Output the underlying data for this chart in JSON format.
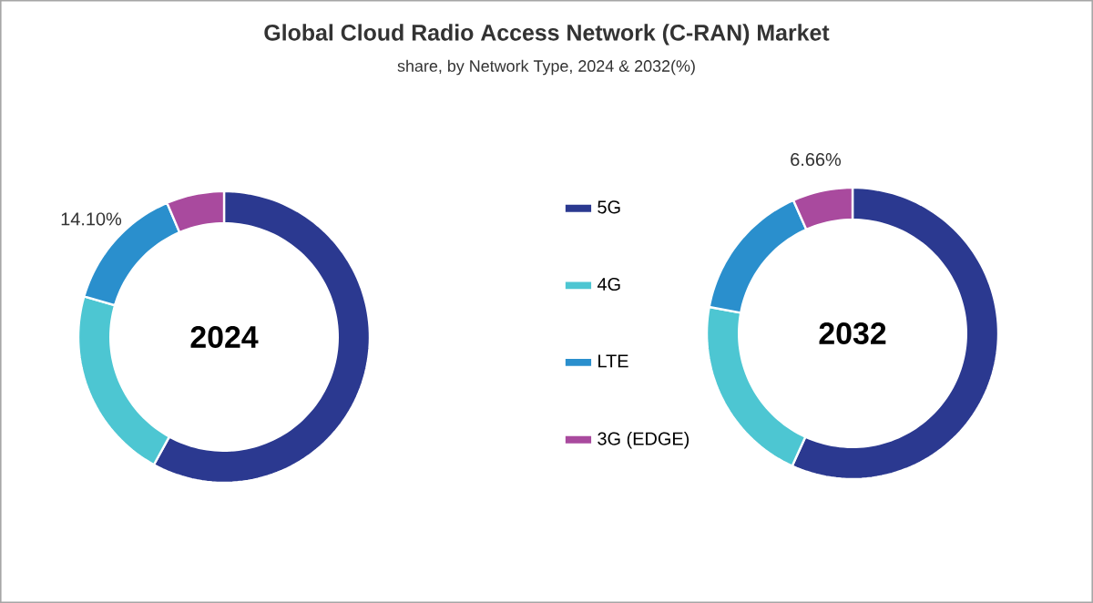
{
  "chart_data": {
    "type": "donut",
    "title": "Global Cloud Radio Access Network (C-RAN) Market",
    "subtitle": "share, by Network Type, 2024 & 2032(%)",
    "categories": [
      "5G",
      "4G",
      "LTE",
      "3G (EDGE)"
    ],
    "colors": [
      "#2b3990",
      "#4dc6d2",
      "#2a8fcd",
      "#a94a9e"
    ],
    "legend": "right",
    "series": [
      {
        "name": "2024",
        "values": [
          58.0,
          21.5,
          14.1,
          6.4
        ],
        "value_labels": [
          null,
          null,
          "14.10%",
          null
        ]
      },
      {
        "name": "2032",
        "values": [
          56.8,
          21.1,
          15.44,
          6.66
        ],
        "value_labels": [
          null,
          null,
          null,
          "6.66%"
        ]
      }
    ]
  }
}
